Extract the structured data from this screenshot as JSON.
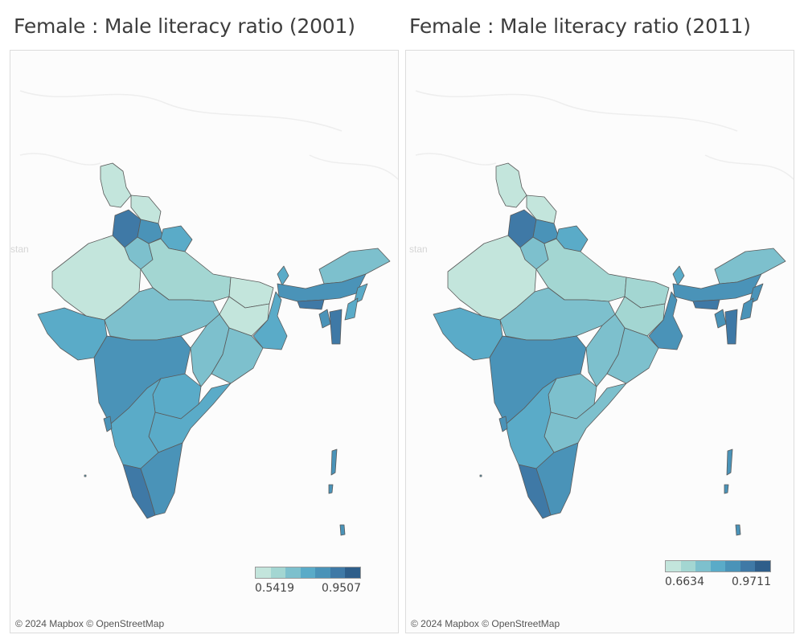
{
  "maps": [
    {
      "title": "Female : Male literacy ratio (2001)",
      "legend": {
        "min_label": "0.5419",
        "max_label": "0.9507"
      },
      "attribution": "© 2024 Mapbox © OpenStreetMap",
      "bg_label": "stan",
      "region_levels": {
        "jammu_kashmir": 0,
        "ladakh": 0,
        "punjab": 5,
        "himachal": 4,
        "uttarakhand": 3,
        "haryana": 2,
        "rajasthan": 0,
        "up": 1,
        "bihar": 0,
        "jharkhand": 0,
        "west_bengal": 3,
        "gujarat": 3,
        "mp": 2,
        "chhattisgarh": 2,
        "odisha": 2,
        "maharashtra": 4,
        "telangana": 3,
        "andhra": 3,
        "karnataka": 3,
        "goa": 4,
        "kerala": 5,
        "tamil_nadu": 4,
        "sikkim": 3,
        "arunachal": 2,
        "assam": 4,
        "nagaland": 3,
        "manipur": 3,
        "meghalaya": 5,
        "tripura": 4,
        "mizoram": 5,
        "andaman": 4,
        "lakshadweep": 3
      }
    },
    {
      "title": "Female : Male literacy ratio (2011)",
      "legend": {
        "min_label": "0.6634",
        "max_label": "0.9711"
      },
      "attribution": "© 2024 Mapbox © OpenStreetMap",
      "bg_label": "stan",
      "region_levels": {
        "jammu_kashmir": 0,
        "ladakh": 0,
        "punjab": 5,
        "himachal": 4,
        "uttarakhand": 3,
        "haryana": 2,
        "rajasthan": 0,
        "up": 1,
        "bihar": 1,
        "jharkhand": 1,
        "west_bengal": 4,
        "gujarat": 3,
        "mp": 2,
        "chhattisgarh": 2,
        "odisha": 2,
        "maharashtra": 4,
        "telangana": 2,
        "andhra": 2,
        "karnataka": 3,
        "goa": 4,
        "kerala": 5,
        "tamil_nadu": 4,
        "sikkim": 3,
        "arunachal": 2,
        "assam": 4,
        "nagaland": 4,
        "manipur": 4,
        "meghalaya": 5,
        "tripura": 4,
        "mizoram": 5,
        "andaman": 4,
        "lakshadweep": 3
      }
    }
  ],
  "palette": [
    "#c3e5dc",
    "#a3d6d2",
    "#7dc0cd",
    "#5aabc8",
    "#4a93b8",
    "#3f79a6",
    "#2e5e8a"
  ]
}
